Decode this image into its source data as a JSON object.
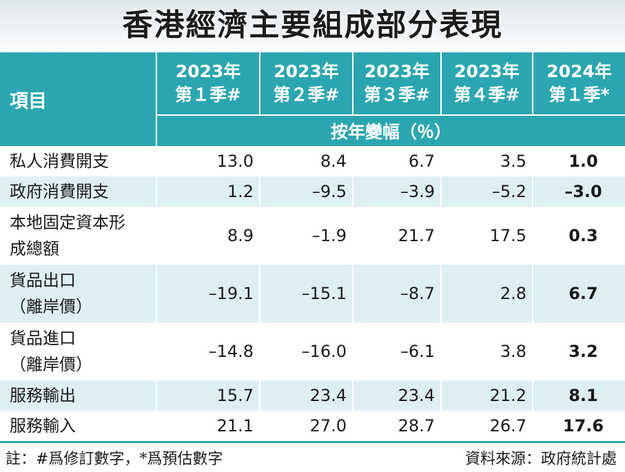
{
  "title": "香港經濟主要組成部分表現",
  "header": {
    "item_label": "項目",
    "periods": [
      {
        "year": "2023年",
        "quarter": "第１季#"
      },
      {
        "year": "2023年",
        "quarter": "第２季#"
      },
      {
        "year": "2023年",
        "quarter": "第３季#"
      },
      {
        "year": "2023年",
        "quarter": "第４季#"
      },
      {
        "year": "2024年",
        "quarter": "第１季*"
      }
    ],
    "unit_label": "按年變幅（％）"
  },
  "rows": [
    {
      "label": [
        "私人消費開支"
      ],
      "values": [
        "13.0",
        "8.4",
        "6.7",
        "3.5",
        "1.0"
      ]
    },
    {
      "label": [
        "政府消費開支"
      ],
      "values": [
        "1.2",
        "–9.5",
        "–3.9",
        "–5.2",
        "–3.0"
      ]
    },
    {
      "label": [
        "本地固定資本形",
        "成總額"
      ],
      "values": [
        "8.9",
        "–1.9",
        "21.7",
        "17.5",
        "0.3"
      ]
    },
    {
      "label": [
        "貨品出口",
        "（離岸價）"
      ],
      "values": [
        "–19.1",
        "–15.1",
        "–8.7",
        "2.8",
        "6.7"
      ]
    },
    {
      "label": [
        "貨品進口",
        "（離岸價）"
      ],
      "values": [
        "–14.8",
        "–16.0",
        "–6.1",
        "3.8",
        "3.2"
      ]
    },
    {
      "label": [
        "服務輸出"
      ],
      "values": [
        "15.7",
        "23.4",
        "23.4",
        "21.2",
        "8.1"
      ]
    },
    {
      "label": [
        "服務輸入"
      ],
      "values": [
        "21.1",
        "27.0",
        "28.7",
        "26.7",
        "17.6"
      ]
    }
  ],
  "footer": {
    "note": "註：#爲修訂數字，*爲預估數字",
    "source": "資料來源：政府統計處"
  },
  "colors": {
    "header_bg": "#2ba6b0",
    "alt_row_bg": "#deeff2",
    "text": "#1a1a1a"
  },
  "chart_data": {
    "type": "table",
    "title": "香港經濟主要組成部分表現",
    "unit": "按年變幅（％）",
    "columns": [
      "2023年第１季#",
      "2023年第２季#",
      "2023年第３季#",
      "2023年第４季#",
      "2024年第１季*"
    ],
    "series": [
      {
        "name": "私人消費開支",
        "values": [
          13.0,
          8.4,
          6.7,
          3.5,
          1.0
        ]
      },
      {
        "name": "政府消費開支",
        "values": [
          1.2,
          -9.5,
          -3.9,
          -5.2,
          -3.0
        ]
      },
      {
        "name": "本地固定資本形成總額",
        "values": [
          8.9,
          -1.9,
          21.7,
          17.5,
          0.3
        ]
      },
      {
        "name": "貨品出口（離岸價）",
        "values": [
          -19.1,
          -15.1,
          -8.7,
          2.8,
          6.7
        ]
      },
      {
        "name": "貨品進口（離岸價）",
        "values": [
          -14.8,
          -16.0,
          -6.1,
          3.8,
          3.2
        ]
      },
      {
        "name": "服務輸出",
        "values": [
          15.7,
          23.4,
          23.4,
          21.2,
          8.1
        ]
      },
      {
        "name": "服務輸入",
        "values": [
          21.1,
          27.0,
          28.7,
          26.7,
          17.6
        ]
      }
    ]
  }
}
